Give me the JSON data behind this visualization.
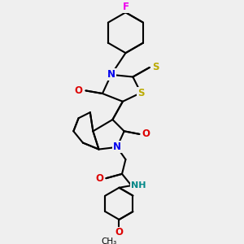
{
  "bg_color": "#efefef",
  "atom_colors": {
    "C": "#000000",
    "N": "#0000ee",
    "O": "#dd0000",
    "S": "#bbaa00",
    "F": "#ee00ee",
    "H": "#008888"
  },
  "bond_color": "#000000",
  "bond_width": 1.5,
  "dbo": 0.018,
  "font_size": 8.5,
  "fig_size": [
    3.0,
    3.0
  ],
  "dpi": 100
}
